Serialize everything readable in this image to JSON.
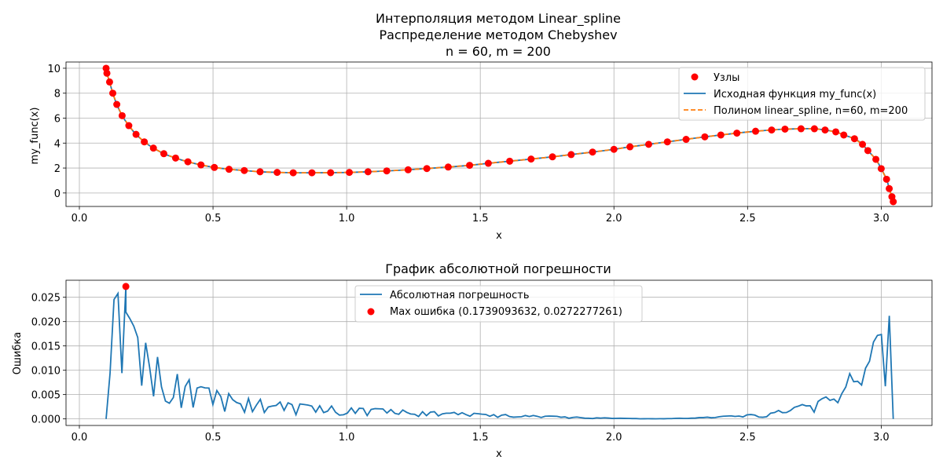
{
  "chart_data": [
    {
      "type": "line",
      "title_lines": [
        "Интерполяция методом Linear_spline",
        "Распределение методом Chebyshev",
        "n = 60, m = 200"
      ],
      "xlabel": "x",
      "ylabel": "my_func(x)",
      "xlim": [
        -0.05,
        3.19
      ],
      "ylim": [
        -1.08,
        10.5
      ],
      "xticks": [
        0.0,
        0.5,
        1.0,
        1.5,
        2.0,
        2.5,
        3.0
      ],
      "xtick_labels": [
        "0.0",
        "0.5",
        "1.0",
        "1.5",
        "2.0",
        "2.5",
        "3.0"
      ],
      "yticks": [
        0,
        2,
        4,
        6,
        8,
        10
      ],
      "ytick_labels": [
        "0",
        "2",
        "4",
        "6",
        "8",
        "10"
      ],
      "grid": true,
      "legend_position": "top-right",
      "x_domain": [
        0.1,
        3.045
      ],
      "series": [
        {
          "name": "Узлы",
          "kind": "markers",
          "color": "#ff0000",
          "node_count": 60,
          "nodes_sample": [
            [
              0.1,
              10.0
            ],
            [
              0.103,
              9.6
            ],
            [
              0.113,
              8.9
            ],
            [
              0.125,
              8.0
            ],
            [
              0.14,
              7.1
            ],
            [
              0.16,
              6.2
            ],
            [
              0.185,
              5.4
            ],
            [
              0.212,
              4.7
            ],
            [
              0.243,
              4.1
            ],
            [
              0.277,
              3.6
            ],
            [
              0.316,
              3.15
            ],
            [
              0.36,
              2.8
            ],
            [
              0.406,
              2.5
            ],
            [
              0.455,
              2.25
            ],
            [
              0.505,
              2.05
            ],
            [
              0.56,
              1.9
            ],
            [
              0.617,
              1.8
            ],
            [
              0.676,
              1.7
            ],
            [
              0.74,
              1.65
            ],
            [
              0.8,
              1.62
            ],
            [
              0.87,
              1.62
            ],
            [
              0.94,
              1.63
            ],
            [
              1.01,
              1.65
            ],
            [
              1.08,
              1.7
            ],
            [
              1.15,
              1.77
            ],
            [
              1.23,
              1.86
            ],
            [
              1.3,
              1.96
            ],
            [
              1.38,
              2.08
            ],
            [
              1.46,
              2.22
            ],
            [
              1.53,
              2.38
            ],
            [
              1.61,
              2.55
            ],
            [
              1.69,
              2.72
            ],
            [
              1.77,
              2.9
            ],
            [
              1.84,
              3.08
            ],
            [
              1.92,
              3.28
            ],
            [
              2.0,
              3.5
            ],
            [
              2.06,
              3.7
            ],
            [
              2.13,
              3.9
            ],
            [
              2.2,
              4.1
            ],
            [
              2.27,
              4.3
            ],
            [
              2.34,
              4.5
            ],
            [
              2.4,
              4.65
            ],
            [
              2.46,
              4.8
            ],
            [
              2.53,
              4.95
            ],
            [
              2.59,
              5.05
            ],
            [
              2.64,
              5.12
            ],
            [
              2.7,
              5.15
            ],
            [
              2.75,
              5.15
            ],
            [
              2.79,
              5.05
            ],
            [
              2.83,
              4.9
            ],
            [
              2.86,
              4.65
            ],
            [
              2.9,
              4.35
            ],
            [
              2.93,
              3.9
            ],
            [
              2.95,
              3.4
            ],
            [
              2.98,
              2.7
            ],
            [
              3.0,
              1.95
            ],
            [
              3.02,
              1.1
            ],
            [
              3.03,
              0.35
            ],
            [
              3.04,
              -0.3
            ],
            [
              3.045,
              -0.7
            ]
          ]
        },
        {
          "name": "Исходная функция my_func(x)",
          "kind": "line",
          "color": "#1f77b4"
        },
        {
          "name": "Полином linear_spline, n=60, m=200",
          "kind": "dashed-line",
          "color": "#ff7f0e"
        }
      ]
    },
    {
      "type": "line",
      "title": "График абсолютной погрешности",
      "xlabel": "x",
      "ylabel": "Ошибка",
      "xlim": [
        -0.05,
        3.19
      ],
      "ylim": [
        -0.00135,
        0.0285
      ],
      "xticks": [
        0.0,
        0.5,
        1.0,
        1.5,
        2.0,
        2.5,
        3.0
      ],
      "xtick_labels": [
        "0.0",
        "0.5",
        "1.0",
        "1.5",
        "2.0",
        "2.5",
        "3.0"
      ],
      "yticks": [
        0.0,
        0.005,
        0.01,
        0.015,
        0.02,
        0.025
      ],
      "ytick_labels": [
        "0.000",
        "0.005",
        "0.010",
        "0.015",
        "0.020",
        "0.025"
      ],
      "grid": true,
      "legend_position": "top-center",
      "x_domain": [
        0.1,
        3.045
      ],
      "sample_count": 200,
      "series": [
        {
          "name": "Абсолютная погрешность",
          "kind": "line",
          "color": "#1f77b4"
        },
        {
          "name": "Max ошибка (0.1739093632, 0.0272277261)",
          "kind": "marker",
          "color": "#ff0000",
          "x": 0.1739093632,
          "y": 0.0272277261
        }
      ]
    }
  ]
}
